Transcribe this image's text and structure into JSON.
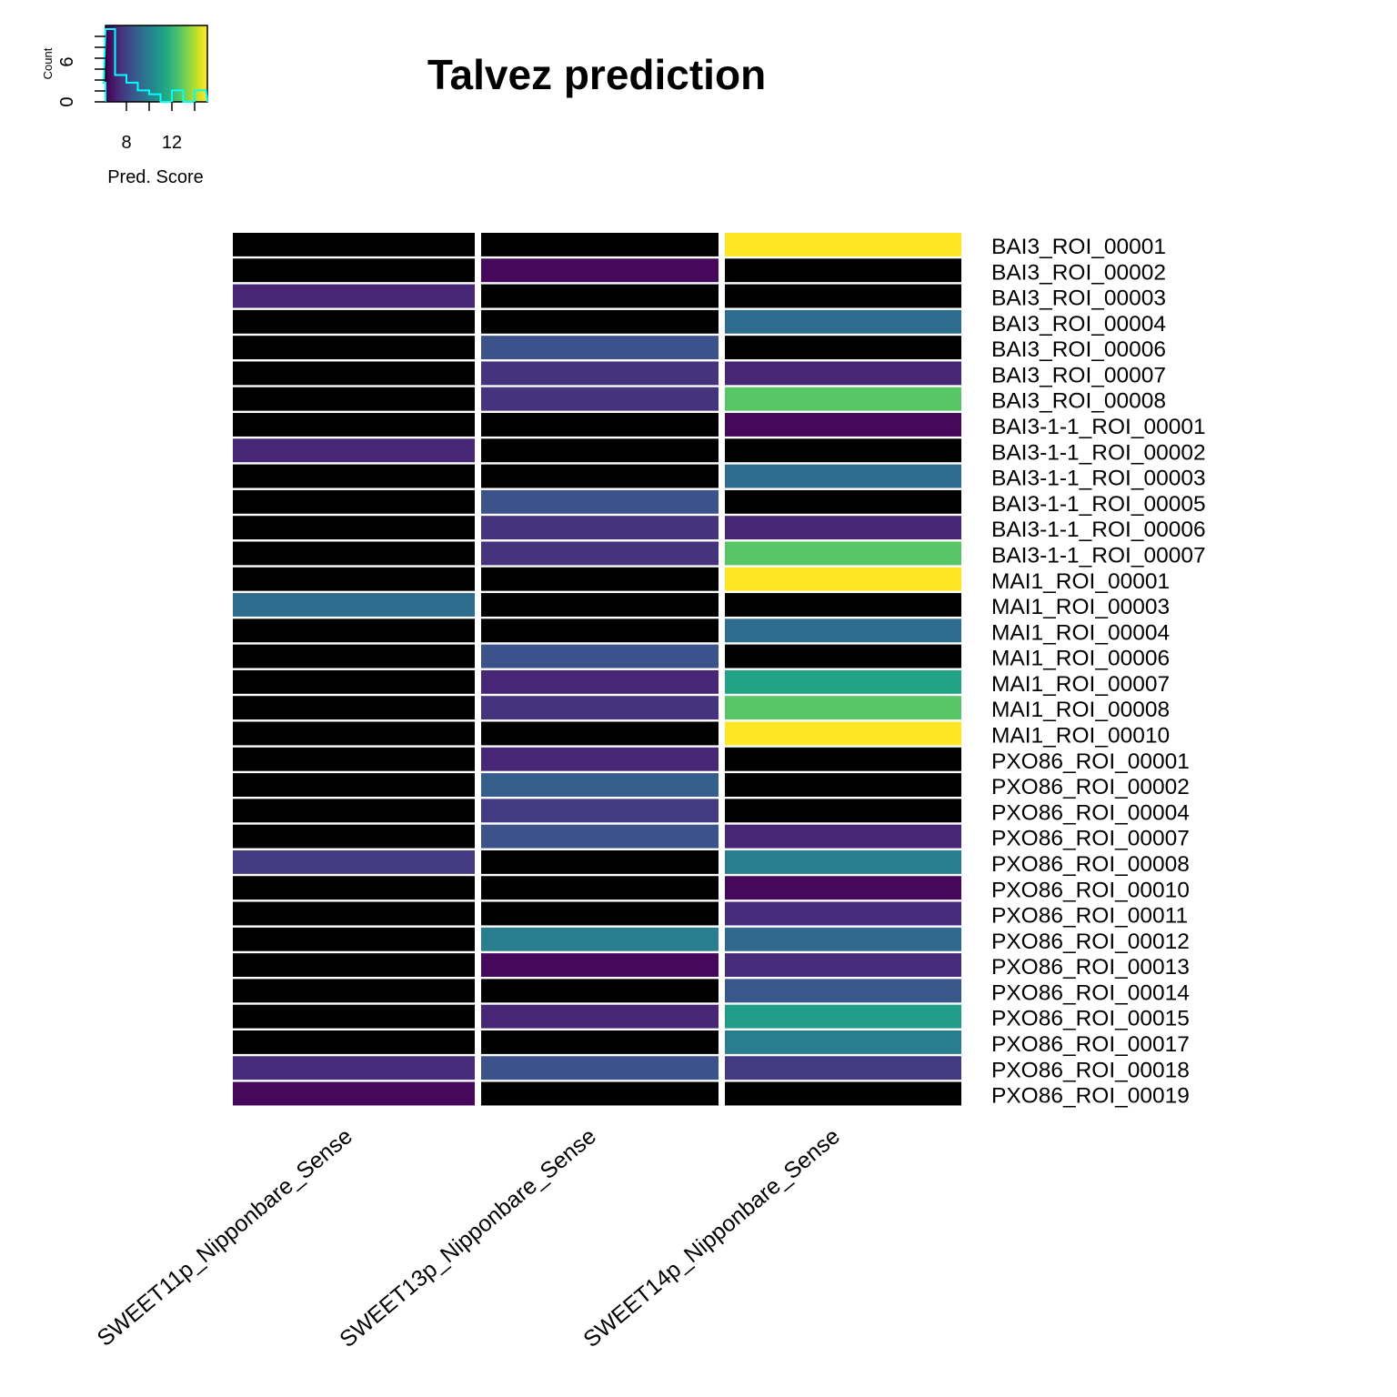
{
  "chart_data": {
    "type": "heatmap",
    "title": "Talvez prediction",
    "columns": [
      "SWEET11p_Nipponbare_Sense",
      "SWEET13p_Nipponbare_Sense",
      "SWEET14p_Nipponbare_Sense"
    ],
    "rows": [
      "BAI3_ROI_00001",
      "BAI3_ROI_00002",
      "BAI3_ROI_00003",
      "BAI3_ROI_00004",
      "BAI3_ROI_00006",
      "BAI3_ROI_00007",
      "BAI3_ROI_00008",
      "BAI3-1-1_ROI_00001",
      "BAI3-1-1_ROI_00002",
      "BAI3-1-1_ROI_00003",
      "BAI3-1-1_ROI_00005",
      "BAI3-1-1_ROI_00006",
      "BAI3-1-1_ROI_00007",
      "MAI1_ROI_00001",
      "MAI1_ROI_00003",
      "MAI1_ROI_00004",
      "MAI1_ROI_00006",
      "MAI1_ROI_00007",
      "MAI1_ROI_00008",
      "MAI1_ROI_00010",
      "PXO86_ROI_00001",
      "PXO86_ROI_00002",
      "PXO86_ROI_00004",
      "PXO86_ROI_00007",
      "PXO86_ROI_00008",
      "PXO86_ROI_00010",
      "PXO86_ROI_00011",
      "PXO86_ROI_00012",
      "PXO86_ROI_00013",
      "PXO86_ROI_00014",
      "PXO86_ROI_00015",
      "PXO86_ROI_00017",
      "PXO86_ROI_00018",
      "PXO86_ROI_00019"
    ],
    "values": [
      [
        null,
        null,
        14.5
      ],
      [
        null,
        5.2,
        null
      ],
      [
        6.0,
        null,
        null
      ],
      [
        null,
        null,
        8.4
      ],
      [
        null,
        7.4,
        null
      ],
      [
        null,
        6.4,
        6.0
      ],
      [
        null,
        6.4,
        12.0
      ],
      [
        null,
        null,
        5.2
      ],
      [
        6.0,
        null,
        null
      ],
      [
        null,
        null,
        8.4
      ],
      [
        null,
        7.4,
        null
      ],
      [
        null,
        6.4,
        6.0
      ],
      [
        null,
        6.4,
        12.0
      ],
      [
        null,
        null,
        14.5
      ],
      [
        8.4,
        null,
        null
      ],
      [
        null,
        null,
        8.4
      ],
      [
        null,
        7.4,
        null
      ],
      [
        null,
        6.0,
        10.5
      ],
      [
        null,
        6.4,
        12.0
      ],
      [
        null,
        null,
        14.5
      ],
      [
        null,
        6.0,
        null
      ],
      [
        null,
        7.8,
        null
      ],
      [
        null,
        6.6,
        null
      ],
      [
        null,
        7.4,
        6.0
      ],
      [
        6.6,
        null,
        9.0
      ],
      [
        null,
        null,
        5.2
      ],
      [
        null,
        null,
        6.2
      ],
      [
        null,
        9.0,
        8.2
      ],
      [
        null,
        5.2,
        6.2
      ],
      [
        null,
        null,
        7.6
      ],
      [
        null,
        6.0,
        10.2
      ],
      [
        null,
        null,
        9.0
      ],
      [
        6.2,
        7.4,
        6.6
      ],
      [
        5.2,
        null,
        null
      ]
    ],
    "na_color": "#000000",
    "palette": "viridis",
    "color_range": [
      5,
      14.5
    ],
    "key": {
      "xlabel": "Pred. Score",
      "ylabel": "Count",
      "xticks": [
        8,
        12
      ],
      "yticks": [
        0,
        6
      ],
      "histogram_color": "#00ffff"
    }
  }
}
